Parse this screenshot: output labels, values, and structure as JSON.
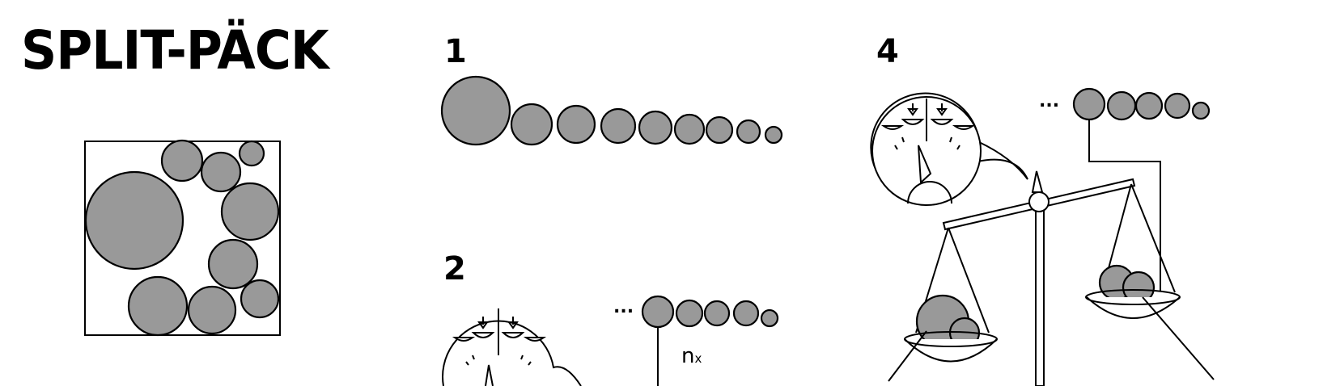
{
  "title": "SPLIT-PÄCK",
  "steps": {
    "s1": "1",
    "s2": "2",
    "s4": "4"
  },
  "ellipsis_2": "...",
  "ellipsis_4": "...",
  "count_label": "n",
  "count_sub": "x",
  "colors": {
    "ball_fill": "#999999",
    "stroke": "#000000",
    "background": "#ffffff"
  }
}
